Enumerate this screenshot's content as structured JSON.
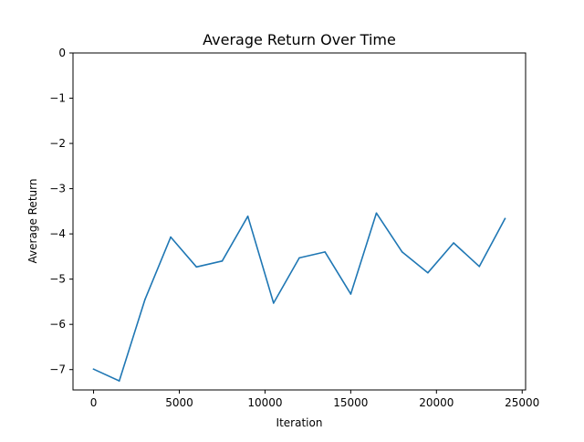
{
  "chart_data": {
    "type": "line",
    "title": "Average Return Over Time",
    "xlabel": "Iteration",
    "ylabel": "Average Return",
    "xlim": [
      -1200,
      25200
    ],
    "ylim": [
      -7.45,
      0
    ],
    "xticks": [
      0,
      5000,
      10000,
      15000,
      20000,
      25000
    ],
    "xtick_labels": [
      "0",
      "5000",
      "10000",
      "15000",
      "20000",
      "25000"
    ],
    "yticks": [
      0,
      -1,
      -2,
      -3,
      -4,
      -5,
      -6,
      -7
    ],
    "ytick_labels": [
      "0",
      "−1",
      "−2",
      "−3",
      "−4",
      "−5",
      "−6",
      "−7"
    ],
    "grid": false,
    "line_color": "#1f77b4",
    "series": [
      {
        "x": [
          0,
          1500,
          3000,
          4500,
          6000,
          7500,
          9000,
          10500,
          12000,
          13500,
          15000,
          16500,
          18000,
          19500,
          21000,
          22500,
          24000
        ],
        "values": [
          -6.99,
          -7.25,
          -5.45,
          -4.07,
          -4.73,
          -4.6,
          -3.61,
          -5.53,
          -4.53,
          -4.4,
          -5.33,
          -3.54,
          -4.4,
          -4.86,
          -4.2,
          -4.72,
          -3.66
        ]
      }
    ]
  }
}
